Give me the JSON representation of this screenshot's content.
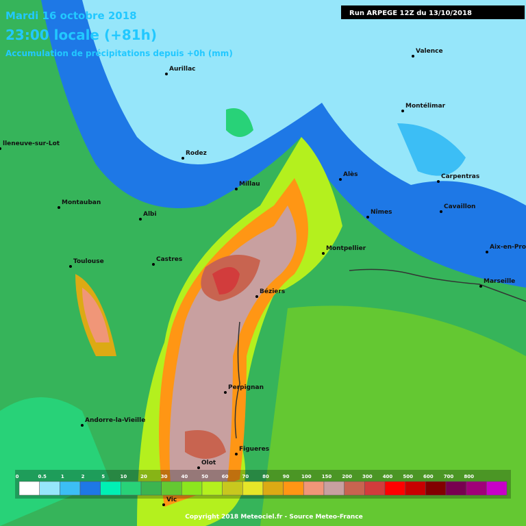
{
  "header": {
    "date": "Mardi 16 octobre 2018",
    "time": "23:00 locale (+81h)",
    "field": "Accumulation de précipitations depuis +0h (mm)",
    "run": "Run ARPEGE 12Z du 13/10/2018"
  },
  "cities": [
    "Aurillac",
    "Valence",
    "Montélimar",
    "Rodez",
    "lleneuve-sur-Lot",
    "Millau",
    "Alès",
    "Carpentras",
    "Montauban",
    "Albi",
    "Nîmes",
    "Cavaillon",
    "Toulouse",
    "Castres",
    "Montpellier",
    "Aix-en-Prov",
    "Marseille",
    "Béziers",
    "Perpignan",
    "Andorre-la-Vieille",
    "Figueres",
    "Olot",
    "Vic"
  ],
  "legend": {
    "labels": [
      0,
      0.5,
      1,
      2,
      5,
      10,
      20,
      30,
      40,
      50,
      60,
      70,
      80,
      90,
      100,
      150,
      200,
      300,
      400,
      500,
      600,
      700,
      800
    ],
    "colors": [
      "#ffffff",
      "#96e6fa",
      "#3cbef5",
      "#1e78e6",
      "#00f0b4",
      "#28d278",
      "#3cb450",
      "#64c832",
      "#8ce61e",
      "#b4f01e",
      "#c8c81e",
      "#e6e628",
      "#dcaa14",
      "#ff9614",
      "#f09678",
      "#c8a0a0",
      "#c86450",
      "#d23c3c",
      "#ff0000",
      "#c80000",
      "#820000",
      "#780050",
      "#a00078",
      "#c800c8"
    ]
  },
  "footer": "Copyright 2018 Meteociel.fr - Source Meteo-France"
}
